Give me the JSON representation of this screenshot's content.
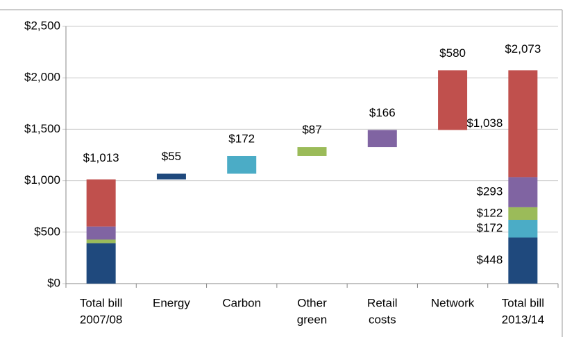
{
  "chart_data": {
    "type": "waterfall",
    "categories": [
      [
        "Total bill",
        "2007/08"
      ],
      [
        "Energy"
      ],
      [
        "Carbon"
      ],
      [
        "Other",
        "green"
      ],
      [
        "Retail",
        "costs"
      ],
      [
        "Network"
      ],
      [
        "Total bill",
        "2013/14"
      ]
    ],
    "series": [
      {
        "color": "#1f497d",
        "values": [
          393,
          55,
          null,
          null,
          null,
          null,
          448
        ],
        "value_labels": [
          null,
          "$55",
          null,
          null,
          null,
          null,
          "$448"
        ]
      },
      {
        "color": "#4bacc6",
        "values": [
          null,
          null,
          172,
          null,
          null,
          null,
          172
        ],
        "value_labels": [
          null,
          null,
          "$172",
          null,
          null,
          null,
          "$172"
        ]
      },
      {
        "color": "#9bbb59",
        "values": [
          35,
          null,
          null,
          87,
          null,
          null,
          122
        ],
        "value_labels": [
          null,
          null,
          null,
          "$87",
          null,
          null,
          "$122"
        ]
      },
      {
        "color": "#8064a2",
        "values": [
          127,
          null,
          null,
          null,
          166,
          null,
          293
        ],
        "value_labels": [
          null,
          null,
          null,
          null,
          "$166",
          null,
          "$293"
        ]
      },
      {
        "color": "#c0504d",
        "values": [
          458,
          null,
          null,
          null,
          null,
          580,
          1038
        ],
        "value_labels": [
          null,
          null,
          null,
          null,
          null,
          "$580",
          "$1,038"
        ]
      }
    ],
    "total_values": [
      1013,
      null,
      null,
      null,
      null,
      null,
      2073
    ],
    "total_labels": [
      "$1,013",
      null,
      null,
      null,
      null,
      null,
      "$2,073"
    ],
    "ylim": [
      0,
      2500
    ],
    "yticks": [
      {
        "value": 0,
        "label": "$0"
      },
      {
        "value": 500,
        "label": "$500"
      },
      {
        "value": 1000,
        "label": "$1,000"
      },
      {
        "value": 1500,
        "label": "$1,500"
      },
      {
        "value": 2000,
        "label": "$2,000"
      },
      {
        "value": 2500,
        "label": "$2,500"
      }
    ],
    "grid": true
  }
}
